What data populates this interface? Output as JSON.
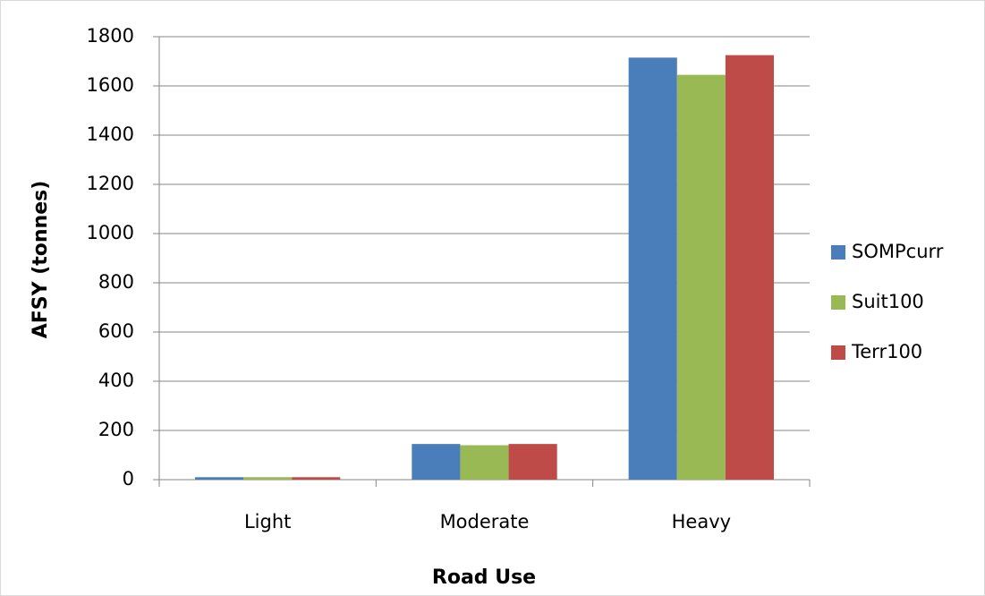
{
  "chart_data": {
    "type": "bar",
    "x_label": "Road Use",
    "y_label": "AFSY (tonnes)",
    "categories": [
      "Light",
      "Moderate",
      "Heavy"
    ],
    "series": [
      {
        "name": "SOMPcurr",
        "color": "#4a7ebb",
        "values": [
          10,
          145,
          1715
        ]
      },
      {
        "name": "Suit100",
        "color": "#98b954",
        "values": [
          10,
          140,
          1645
        ]
      },
      {
        "name": "Terr100",
        "color": "#be4b48",
        "values": [
          10,
          145,
          1725
        ]
      }
    ],
    "ylim": [
      0,
      1800
    ],
    "yticks": [
      0,
      200,
      400,
      600,
      800,
      1000,
      1200,
      1400,
      1600,
      1800
    ],
    "grid": true,
    "legend": "right"
  }
}
